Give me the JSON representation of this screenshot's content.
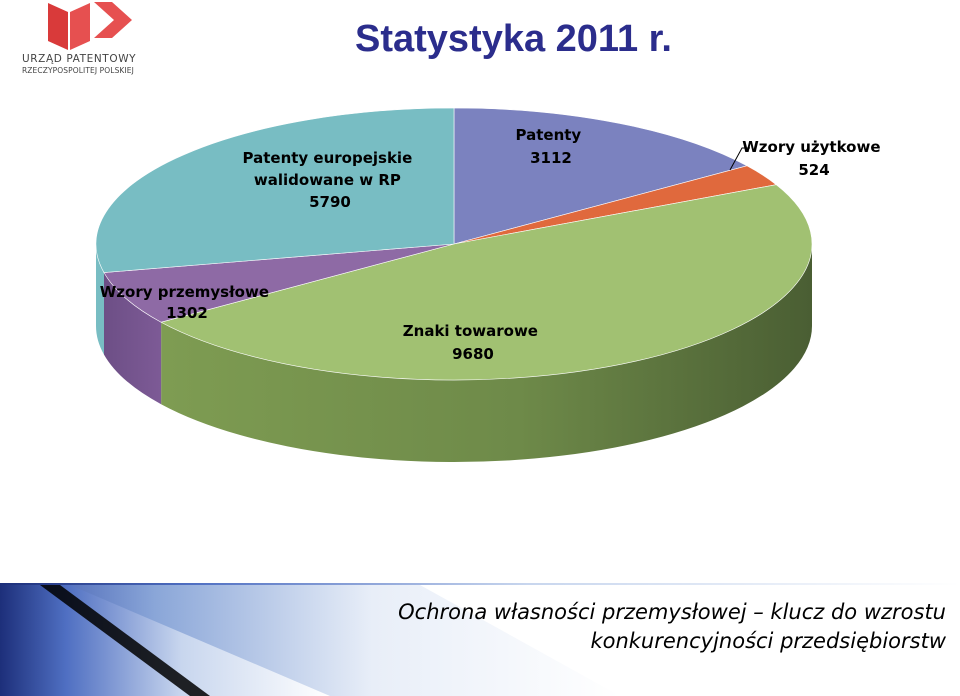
{
  "header": {
    "title": "Statystyka 2011 r.",
    "logo_line1": "URZĄD PATENTOWY",
    "logo_line2": "RZECZYPOSPOLITEJ POLSKIEJ"
  },
  "chart_data": {
    "type": "pie",
    "style": "3d",
    "slices": [
      {
        "label_lines": [
          "Patenty"
        ],
        "value": 3112,
        "value_label": "3112",
        "color": "#7b82bf"
      },
      {
        "label_lines": [
          "Wzory użytkowe"
        ],
        "value": 524,
        "value_label": "524",
        "color": "#e0693d"
      },
      {
        "label_lines": [
          "Znaki towarowe"
        ],
        "value": 9680,
        "value_label": "9680",
        "color": "#a1c172"
      },
      {
        "label_lines": [
          "Wzory przemysłowe"
        ],
        "value": 1302,
        "value_label": "1302",
        "color": "#8e6aa5"
      },
      {
        "label_lines": [
          "Patenty europejskie",
          "walidowane w RP"
        ],
        "value": 5790,
        "value_label": "5790",
        "color": "#78bdc3"
      }
    ]
  },
  "footer": {
    "line1": "Ochrona własności przemysłowej – klucz do wzrostu",
    "line2": "konkurencyjności przedsiębiorstw"
  }
}
